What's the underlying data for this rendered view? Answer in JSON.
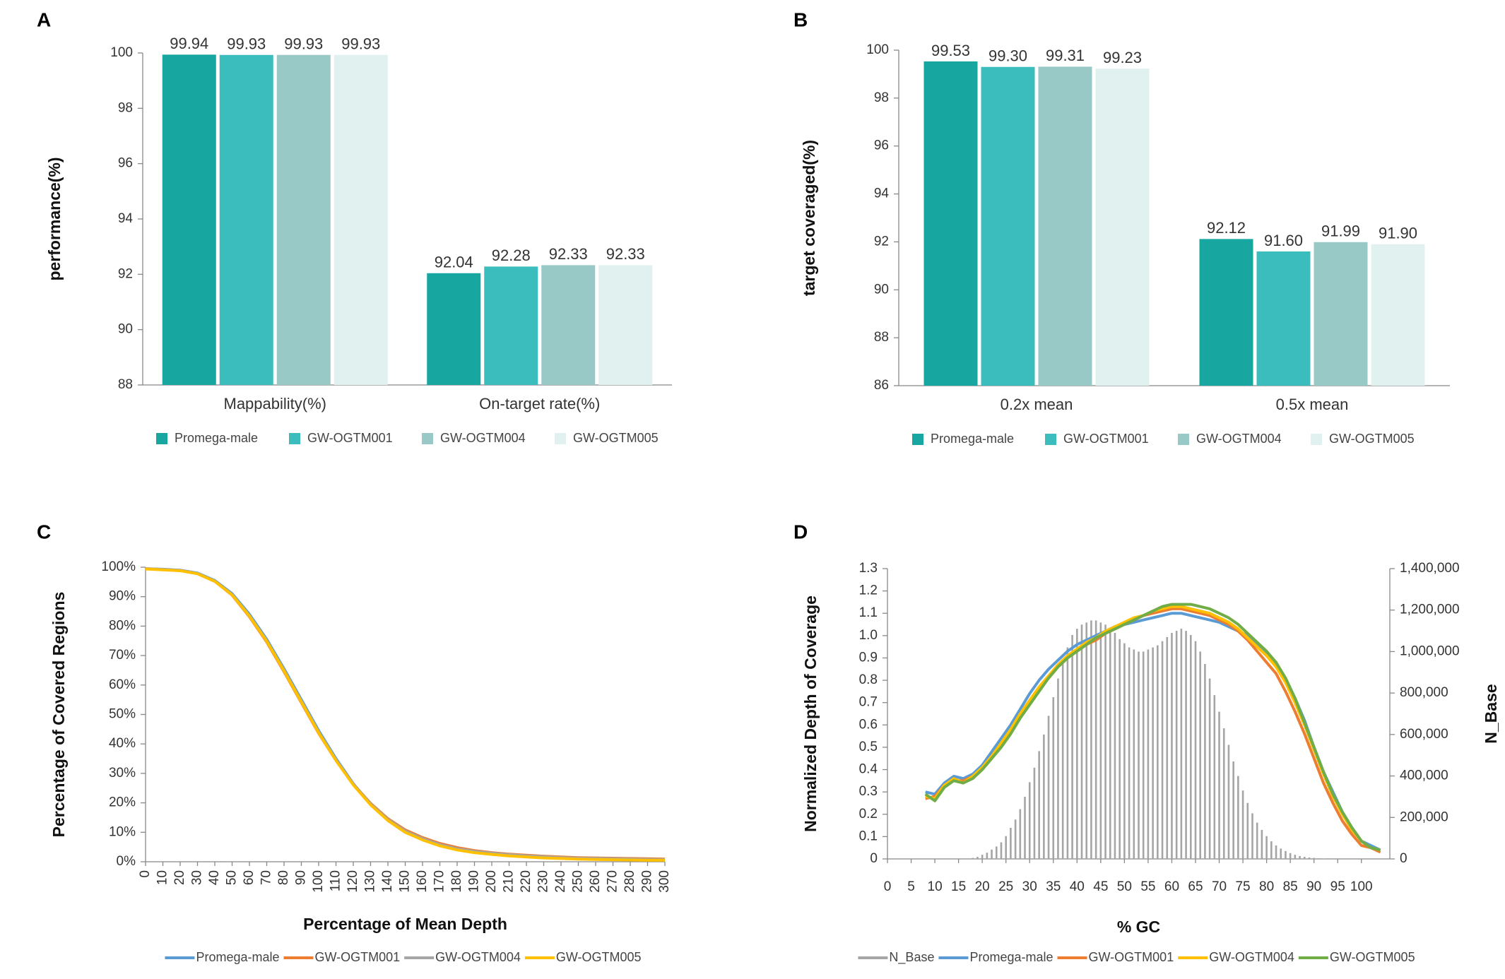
{
  "chart_data": [
    {
      "type": "bar",
      "panel": "A",
      "ylabel": "performance(%)",
      "categories": [
        "Mappability(%)",
        "On-target rate(%)"
      ],
      "ylim": [
        88,
        100
      ],
      "yticks": [
        88,
        90,
        92,
        94,
        96,
        98,
        100
      ],
      "series": [
        {
          "name": "Promega-male",
          "color": "#17a6a0",
          "values": [
            99.94,
            92.04
          ],
          "value_labels": [
            "99.94",
            "92.04"
          ]
        },
        {
          "name": "GW-OGTM001",
          "color": "#3bbdbd",
          "values": [
            99.93,
            92.28
          ],
          "value_labels": [
            "99.93",
            "92.28"
          ]
        },
        {
          "name": "GW-OGTM004",
          "color": "#98c9c6",
          "values": [
            99.93,
            92.33
          ],
          "value_labels": [
            "99.93",
            "92.33"
          ]
        },
        {
          "name": "GW-OGTM005",
          "color": "#e0f1f0",
          "values": [
            99.93,
            92.33
          ],
          "value_labels": [
            "99.93",
            "92.33"
          ]
        }
      ]
    },
    {
      "type": "bar",
      "panel": "B",
      "ylabel": "target coveraged(%)",
      "categories": [
        "0.2x mean",
        "0.5x mean"
      ],
      "ylim": [
        86,
        100
      ],
      "yticks": [
        86,
        88,
        90,
        92,
        94,
        96,
        98,
        100
      ],
      "series": [
        {
          "name": "Promega-male",
          "color": "#17a6a0",
          "values": [
            99.53,
            92.12
          ],
          "value_labels": [
            "99.53",
            "92.12"
          ]
        },
        {
          "name": "GW-OGTM001",
          "color": "#3bbdbd",
          "values": [
            99.3,
            91.6
          ],
          "value_labels": [
            "99.30",
            "91.60"
          ]
        },
        {
          "name": "GW-OGTM004",
          "color": "#98c9c6",
          "values": [
            99.31,
            91.99
          ],
          "value_labels": [
            "99.31",
            "91.99"
          ]
        },
        {
          "name": "GW-OGTM005",
          "color": "#e0f1f0",
          "values": [
            99.23,
            91.9
          ],
          "value_labels": [
            "99.23",
            "91.90"
          ]
        }
      ]
    },
    {
      "type": "line",
      "panel": "C",
      "ylabel": "Percentage of Covered Regions",
      "xlabel": "Percentage of Mean Depth",
      "x": [
        0,
        10,
        20,
        30,
        40,
        50,
        60,
        70,
        80,
        90,
        100,
        110,
        120,
        130,
        140,
        150,
        160,
        170,
        180,
        190,
        200,
        210,
        220,
        230,
        240,
        250,
        260,
        270,
        280,
        290,
        300
      ],
      "xlim": [
        0,
        300
      ],
      "xticks": [
        0,
        10,
        20,
        30,
        40,
        50,
        60,
        70,
        80,
        90,
        100,
        110,
        120,
        130,
        140,
        150,
        160,
        170,
        180,
        190,
        200,
        210,
        220,
        230,
        240,
        250,
        260,
        270,
        280,
        290,
        300
      ],
      "ylim": [
        0,
        100
      ],
      "yticks": [
        {
          "value": 0,
          "label": "0%"
        },
        {
          "value": 10,
          "label": "10%"
        },
        {
          "value": 20,
          "label": "20%"
        },
        {
          "value": 30,
          "label": "30%"
        },
        {
          "value": 40,
          "label": "40%"
        },
        {
          "value": 50,
          "label": "50%"
        },
        {
          "value": 60,
          "label": "60%"
        },
        {
          "value": 70,
          "label": "70%"
        },
        {
          "value": 80,
          "label": "80%"
        },
        {
          "value": 90,
          "label": "90%"
        },
        {
          "value": 100,
          "label": "100%"
        }
      ],
      "series": [
        {
          "name": "Promega-male",
          "color": "#5b9bd5",
          "values": [
            99.5,
            99.3,
            99.0,
            98.0,
            95.5,
            91.0,
            84.0,
            75.5,
            65.5,
            55.0,
            44.5,
            35.0,
            26.5,
            19.5,
            14.0,
            10.0,
            7.5,
            5.5,
            4.2,
            3.3,
            2.7,
            2.2,
            1.8,
            1.5,
            1.3,
            1.1,
            1.0,
            0.9,
            0.8,
            0.7,
            0.6
          ]
        },
        {
          "name": "GW-OGTM001",
          "color": "#ed7d31",
          "values": [
            99.5,
            99.2,
            98.9,
            97.8,
            95.2,
            90.5,
            83.2,
            74.6,
            64.5,
            54.0,
            43.6,
            34.4,
            26.3,
            19.8,
            14.6,
            10.8,
            8.2,
            6.2,
            4.8,
            3.8,
            3.1,
            2.6,
            2.2,
            1.9,
            1.6,
            1.4,
            1.3,
            1.2,
            1.1,
            1.0,
            0.9
          ]
        },
        {
          "name": "GW-OGTM004",
          "color": "#a5a5a5",
          "values": [
            99.5,
            99.2,
            98.9,
            97.9,
            95.3,
            90.7,
            83.5,
            75.0,
            65.0,
            54.5,
            44.0,
            34.6,
            26.3,
            19.6,
            14.3,
            10.4,
            7.8,
            5.8,
            4.4,
            3.5,
            2.9,
            2.4,
            2.0,
            1.7,
            1.4,
            1.2,
            1.1,
            1.0,
            0.9,
            0.8,
            0.7
          ]
        },
        {
          "name": "GW-OGTM005",
          "color": "#ffc000",
          "values": [
            99.4,
            99.1,
            98.8,
            97.8,
            95.2,
            90.6,
            83.4,
            74.9,
            64.8,
            54.3,
            43.8,
            34.4,
            26.1,
            19.3,
            14.0,
            10.0,
            7.4,
            5.4,
            4.0,
            3.1,
            2.5,
            2.0,
            1.6,
            1.3,
            1.1,
            0.9,
            0.8,
            0.7,
            0.6,
            0.5,
            0.5
          ]
        }
      ]
    },
    {
      "type": "combo",
      "panel": "D",
      "ylabel": "Normalized Depth of Coverage",
      "y2label": "N_Base",
      "xlabel": "% GC",
      "x": [
        8,
        10,
        12,
        14,
        16,
        18,
        20,
        22,
        24,
        26,
        28,
        30,
        32,
        34,
        36,
        38,
        40,
        42,
        44,
        46,
        48,
        50,
        52,
        54,
        56,
        58,
        60,
        62,
        64,
        66,
        68,
        70,
        72,
        74,
        76,
        78,
        80,
        82,
        84,
        86,
        88,
        90,
        92,
        94,
        96,
        98,
        100,
        102,
        104
      ],
      "xlim": [
        0,
        106
      ],
      "xticks": [
        0,
        5,
        10,
        15,
        20,
        25,
        30,
        35,
        40,
        45,
        50,
        55,
        60,
        65,
        70,
        75,
        80,
        85,
        90,
        95,
        100
      ],
      "ylim": [
        0,
        1.3
      ],
      "yticks": [
        0,
        0.1,
        0.2,
        0.3,
        0.4,
        0.5,
        0.6,
        0.7,
        0.8,
        0.9,
        {
          "value": 1,
          "label": "1.0"
        },
        1.1,
        1.2,
        1.3
      ],
      "y2lim": [
        0,
        1400000
      ],
      "y2ticks": [
        0,
        {
          "value": 200000,
          "label": "200,000"
        },
        {
          "value": 400000,
          "label": "400,000"
        },
        {
          "value": 600000,
          "label": "600,000"
        },
        {
          "value": 800000,
          "label": "800,000"
        },
        {
          "value": 1000000,
          "label": "1,000,000"
        },
        {
          "value": 1200000,
          "label": "1,200,000"
        },
        {
          "value": 1400000,
          "label": "1,400,000"
        }
      ],
      "series": [
        {
          "name": "N_Base",
          "color": "#a5a5a5",
          "axis": "y2",
          "x": [
            18,
            19,
            20,
            21,
            22,
            23,
            24,
            25,
            26,
            27,
            28,
            29,
            30,
            31,
            32,
            33,
            34,
            35,
            36,
            37,
            38,
            39,
            40,
            41,
            42,
            43,
            44,
            45,
            46,
            47,
            48,
            49,
            50,
            51,
            52,
            53,
            54,
            55,
            56,
            57,
            58,
            59,
            60,
            61,
            62,
            63,
            64,
            65,
            66,
            67,
            68,
            69,
            70,
            71,
            72,
            73,
            74,
            75,
            76,
            77,
            78,
            79,
            80,
            81,
            82,
            83,
            84,
            85,
            86,
            87,
            88,
            89,
            90,
            91,
            92
          ],
          "values": [
            5000,
            10000,
            20000,
            30000,
            45000,
            60000,
            80000,
            110000,
            150000,
            190000,
            240000,
            300000,
            370000,
            440000,
            520000,
            600000,
            690000,
            780000,
            870000,
            950000,
            1020000,
            1080000,
            1110000,
            1130000,
            1140000,
            1150000,
            1150000,
            1140000,
            1130000,
            1110000,
            1090000,
            1060000,
            1040000,
            1020000,
            1010000,
            1000000,
            1000000,
            1010000,
            1020000,
            1030000,
            1050000,
            1070000,
            1090000,
            1100000,
            1110000,
            1100000,
            1080000,
            1050000,
            1000000,
            940000,
            870000,
            790000,
            710000,
            630000,
            550000,
            470000,
            400000,
            330000,
            270000,
            220000,
            175000,
            140000,
            110000,
            85000,
            65000,
            50000,
            38000,
            28000,
            20000,
            14000,
            10000,
            7000,
            5000,
            3000,
            2000
          ]
        },
        {
          "name": "Promega-male",
          "color": "#5b9bd5",
          "values": [
            0.3,
            0.29,
            0.34,
            0.37,
            0.36,
            0.38,
            0.42,
            0.48,
            0.54,
            0.6,
            0.67,
            0.74,
            0.8,
            0.85,
            0.89,
            0.93,
            0.96,
            0.98,
            1.0,
            1.02,
            1.04,
            1.05,
            1.06,
            1.07,
            1.08,
            1.09,
            1.1,
            1.1,
            1.09,
            1.08,
            1.07,
            1.06,
            1.04,
            1.02,
            1.0,
            0.96,
            0.92,
            0.88,
            0.8,
            0.72,
            0.62,
            0.5,
            0.39,
            0.3,
            0.21,
            0.14,
            0.08,
            0.06,
            0.04
          ]
        },
        {
          "name": "GW-OGTM001",
          "color": "#ed7d31",
          "values": [
            0.27,
            0.28,
            0.33,
            0.35,
            0.35,
            0.37,
            0.4,
            0.45,
            0.51,
            0.57,
            0.64,
            0.7,
            0.76,
            0.81,
            0.86,
            0.9,
            0.93,
            0.96,
            0.98,
            1.01,
            1.03,
            1.05,
            1.07,
            1.09,
            1.1,
            1.11,
            1.12,
            1.12,
            1.11,
            1.1,
            1.09,
            1.07,
            1.05,
            1.02,
            0.98,
            0.93,
            0.88,
            0.83,
            0.75,
            0.66,
            0.56,
            0.45,
            0.34,
            0.25,
            0.17,
            0.11,
            0.06,
            0.05,
            0.03
          ]
        },
        {
          "name": "GW-OGTM004",
          "color": "#ffc000",
          "values": [
            0.28,
            0.27,
            0.33,
            0.36,
            0.34,
            0.37,
            0.41,
            0.46,
            0.52,
            0.58,
            0.65,
            0.71,
            0.77,
            0.82,
            0.87,
            0.91,
            0.94,
            0.97,
            0.99,
            1.02,
            1.04,
            1.06,
            1.08,
            1.09,
            1.11,
            1.12,
            1.13,
            1.13,
            1.12,
            1.11,
            1.1,
            1.08,
            1.06,
            1.03,
            0.99,
            0.95,
            0.91,
            0.86,
            0.79,
            0.7,
            0.6,
            0.49,
            0.38,
            0.28,
            0.2,
            0.13,
            0.08,
            0.05,
            0.04
          ]
        },
        {
          "name": "GW-OGTM005",
          "color": "#70ad47",
          "values": [
            0.29,
            0.26,
            0.32,
            0.35,
            0.34,
            0.36,
            0.4,
            0.45,
            0.5,
            0.56,
            0.63,
            0.69,
            0.75,
            0.81,
            0.86,
            0.9,
            0.93,
            0.96,
            0.99,
            1.01,
            1.03,
            1.05,
            1.07,
            1.09,
            1.11,
            1.13,
            1.14,
            1.14,
            1.14,
            1.13,
            1.12,
            1.1,
            1.08,
            1.05,
            1.01,
            0.97,
            0.93,
            0.88,
            0.81,
            0.72,
            0.61,
            0.5,
            0.39,
            0.29,
            0.21,
            0.14,
            0.08,
            0.05,
            0.04
          ]
        }
      ]
    }
  ]
}
